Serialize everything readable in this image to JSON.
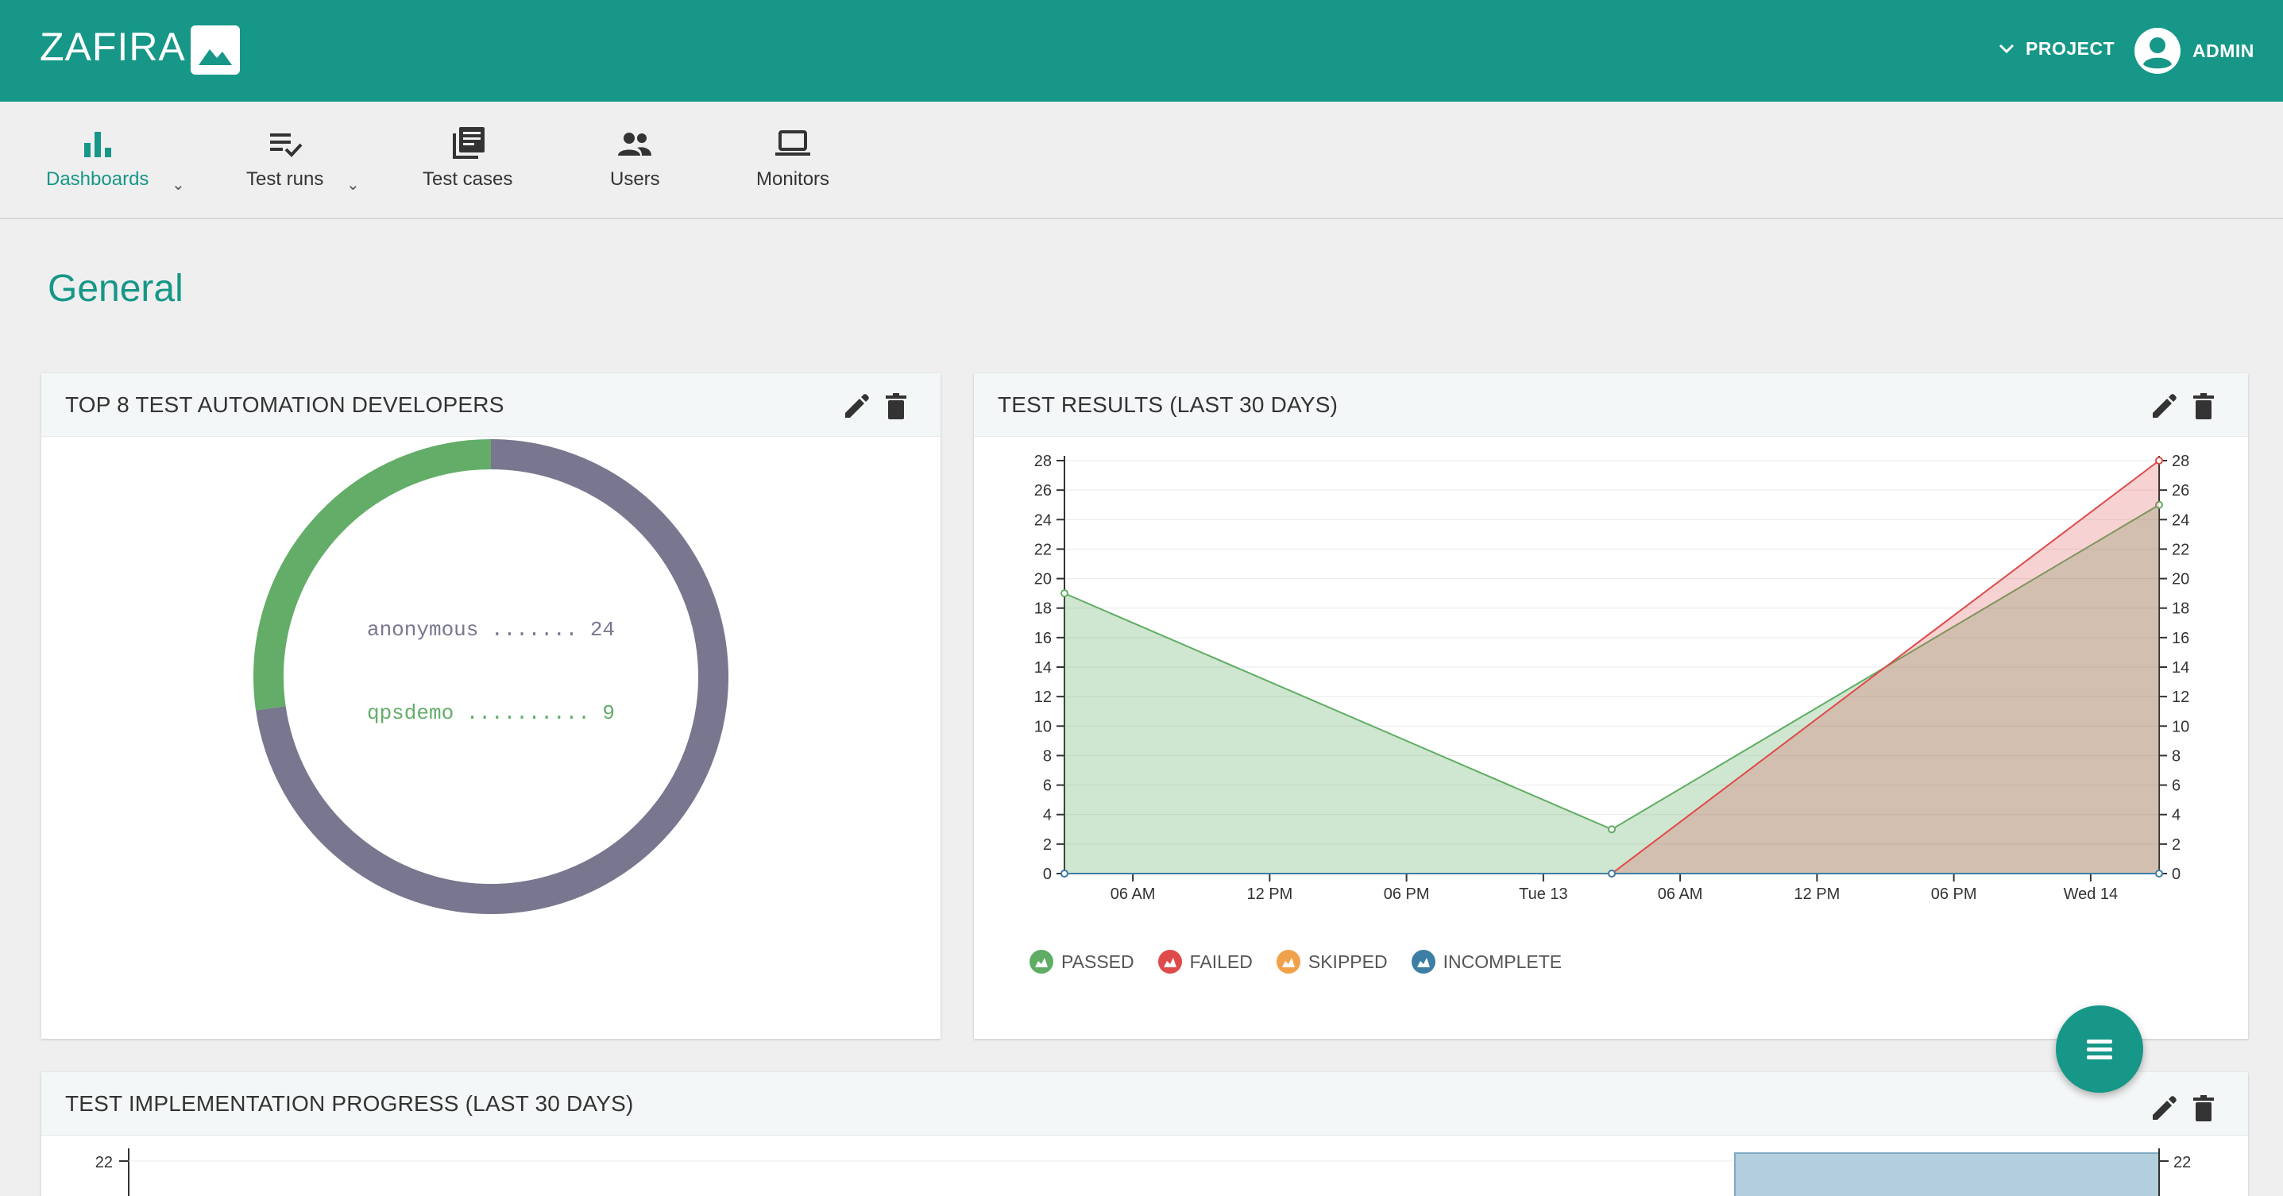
{
  "header": {
    "brand": "ZAFIRA",
    "project_label": "PROJECT",
    "user_label": "ADMIN"
  },
  "nav": {
    "items": [
      {
        "label": "Dashboards",
        "icon": "bar-chart-icon",
        "active": true,
        "has_caret": true
      },
      {
        "label": "Test runs",
        "icon": "playlist-check-icon",
        "has_caret": true
      },
      {
        "label": "Test cases",
        "icon": "library-books-icon"
      },
      {
        "label": "Users",
        "icon": "people-icon"
      },
      {
        "label": "Monitors",
        "icon": "laptop-icon"
      }
    ],
    "caret": "⌄"
  },
  "page": {
    "title": "General"
  },
  "colors": {
    "brand": "#169787",
    "passed": "#5fad64",
    "failed": "#df4a4a",
    "skipped": "#f0a24b",
    "incomplete": "#3d7ea6",
    "donut_main": "#78778f"
  },
  "widgets": {
    "developers": {
      "title": "TOP 8 TEST AUTOMATION DEVELOPERS",
      "chart_data": {
        "type": "pie",
        "variant": "donut",
        "slices": [
          {
            "label": "anonymous",
            "value": 24,
            "color": "#78778f",
            "text": "anonymous ....... 24"
          },
          {
            "label": "qpsdemo",
            "value": 9,
            "color": "#63ad69",
            "text": "qpsdemo .......... 9"
          }
        ]
      }
    },
    "results": {
      "title": "TEST RESULTS (LAST 30 DAYS)",
      "chart_data": {
        "type": "area",
        "x": [
          0,
          6,
          12,
          18,
          24,
          30,
          36,
          42,
          48
        ],
        "x_tick_labels": [
          "06 AM",
          "12 PM",
          "06 PM",
          "Tue 13",
          "06 AM",
          "12 PM",
          "06 PM",
          "Wed 14"
        ],
        "x_tick_positions": [
          6,
          12,
          18,
          24,
          30,
          36,
          42,
          48
        ],
        "series": [
          {
            "name": "PASSED",
            "color": "#5fad64",
            "points": [
              [
                3,
                19
              ],
              [
                27,
                3
              ],
              [
                51,
                25
              ]
            ]
          },
          {
            "name": "FAILED",
            "color": "#df4a4a",
            "points": [
              [
                3,
                0
              ],
              [
                27,
                0
              ],
              [
                51,
                28
              ]
            ]
          },
          {
            "name": "SKIPPED",
            "color": "#f0a24b",
            "points": []
          },
          {
            "name": "INCOMPLETE",
            "color": "#3d7ea6",
            "points": [
              [
                3,
                0
              ],
              [
                27,
                0
              ],
              [
                51,
                0
              ]
            ]
          }
        ],
        "xlim": [
          3,
          51
        ],
        "ylim": [
          0,
          28
        ],
        "y_ticks": [
          0,
          2,
          4,
          6,
          8,
          10,
          12,
          14,
          16,
          18,
          20,
          22,
          24,
          26,
          28
        ],
        "y_tick_labels": [
          "0",
          "2",
          "4",
          "6",
          "8",
          "10",
          "12",
          "14",
          "16",
          "18",
          "20",
          "22",
          "24",
          "26",
          "28"
        ],
        "grid": true,
        "legend_position": "bottom-left"
      }
    },
    "progress": {
      "title": "TEST IMPLEMENTATION PROGRESS (LAST 30 DAYS)",
      "y_tick_left": "22",
      "y_tick_right": "22"
    }
  }
}
